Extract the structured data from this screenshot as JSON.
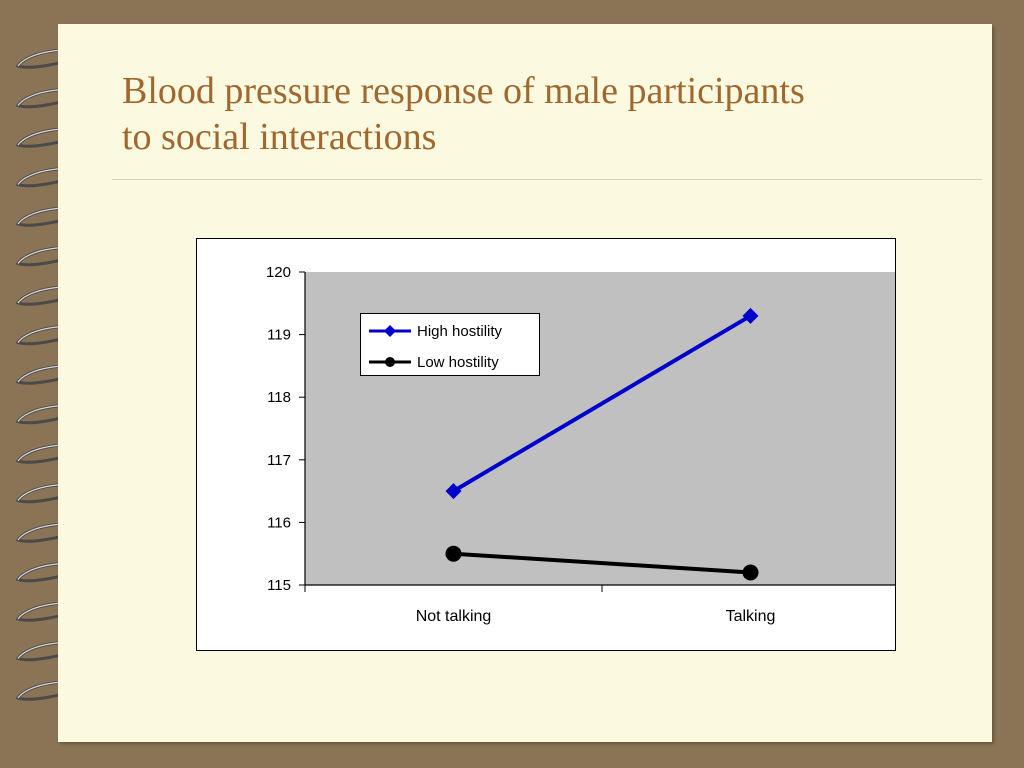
{
  "slide": {
    "title_line1": "Blood pressure response of male participants",
    "title_line2": "to social interactions"
  },
  "colors": {
    "background": "#8b7355",
    "page": "#fbf9df",
    "title": "#a0682f",
    "plot_area": "#c0c0c0",
    "high_hostility": "#0000cc",
    "low_hostility": "#000000"
  },
  "chart_data": {
    "type": "line",
    "categories": [
      "Not talking",
      "Talking"
    ],
    "series": [
      {
        "name": "High hostility",
        "values": [
          116.5,
          119.3
        ],
        "color": "#0000cc",
        "marker": "diamond"
      },
      {
        "name": "Low hostility",
        "values": [
          115.5,
          115.2
        ],
        "color": "#000000",
        "marker": "circle"
      }
    ],
    "yticks": [
      "115",
      "116",
      "117",
      "118",
      "119",
      "120"
    ],
    "ylim": [
      115,
      120
    ],
    "legend_position": "top-left",
    "grid": false
  }
}
